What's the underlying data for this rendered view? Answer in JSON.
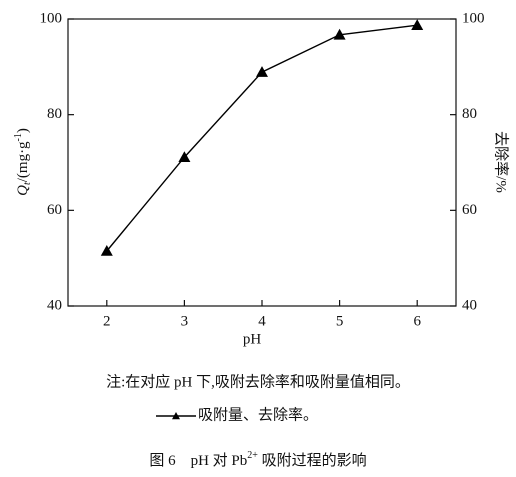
{
  "chart_data": {
    "type": "line",
    "ylabel_parts": [
      "Q",
      "t",
      "/(mg·g",
      "-1",
      ")"
    ],
    "y2label": "去除率/%",
    "xlabel": "pH",
    "note": "注:在对应 pH 下,吸附去除率和吸附量值相同。",
    "caption_parts": [
      "图 6　pH 对 Pb",
      "2+",
      " 吸附过程的影响"
    ],
    "x": [
      2,
      3,
      4,
      5,
      6
    ],
    "xlim": [
      1.5,
      6.5
    ],
    "xticks": [
      2,
      3,
      4,
      5,
      6
    ],
    "ylim": [
      40,
      100
    ],
    "yticks": [
      40,
      60,
      80,
      100
    ],
    "y2lim": [
      40,
      100
    ],
    "y2ticks": [
      40,
      60,
      80,
      100
    ],
    "series": [
      {
        "name": "吸附量、去除率。",
        "color": "#000000",
        "marker": "triangle",
        "values": [
          51.5,
          71.1,
          88.9,
          96.7,
          98.7
        ]
      }
    ]
  }
}
